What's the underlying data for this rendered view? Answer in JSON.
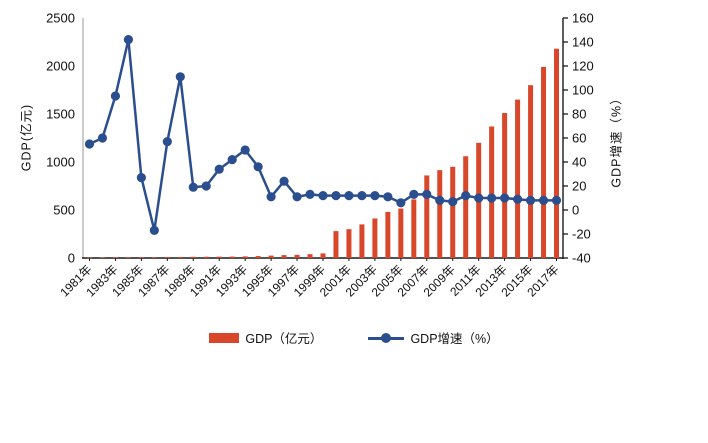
{
  "chart_data": {
    "type": "bar+line combo",
    "title": "",
    "years": [
      1981,
      1982,
      1983,
      1984,
      1985,
      1986,
      1987,
      1988,
      1989,
      1990,
      1991,
      1992,
      1993,
      1994,
      1995,
      1996,
      1997,
      1998,
      1999,
      2000,
      2001,
      2002,
      2003,
      2004,
      2005,
      2006,
      2007,
      2008,
      2009,
      2010,
      2011,
      2012,
      2013,
      2014,
      2015,
      2016,
      2017
    ],
    "x_tick_labels": [
      "1981年",
      "1983年",
      "1985年",
      "1987年",
      "1989年",
      "1991年",
      "1993年",
      "1995年",
      "1997年",
      "1999年",
      "2001年",
      "2003年",
      "2005年",
      "2007年",
      "2009年",
      "2011年",
      "2013年",
      "2015年",
      "2017年"
    ],
    "series": [
      {
        "name": "GDP（亿元）",
        "type": "bar",
        "axis": "left",
        "color": "#D9472B",
        "values": [
          4,
          5,
          6,
          7,
          8,
          9,
          10,
          11,
          12,
          13,
          14,
          15,
          17,
          20,
          25,
          30,
          33,
          40,
          48,
          280,
          300,
          350,
          412,
          480,
          515,
          610,
          860,
          915,
          950,
          1060,
          1200,
          1370,
          1510,
          1650,
          1800,
          1990,
          2180
        ]
      },
      {
        "name": "GDP增速（%）",
        "type": "line",
        "axis": "right",
        "color": "#2B4E8E",
        "values": [
          55,
          60,
          95,
          142,
          27,
          -17,
          57,
          111,
          19,
          20,
          34,
          42,
          50,
          36,
          11,
          24,
          11,
          13,
          12,
          12,
          12,
          12,
          12,
          11,
          6,
          13,
          13,
          8,
          7,
          12,
          10,
          10,
          10,
          9,
          8,
          8,
          8
        ]
      }
    ],
    "left_axis": {
      "label": "GDP(亿元)",
      "min": 0,
      "max": 2500,
      "step": 500
    },
    "right_axis": {
      "label": "GDP增速（%）",
      "min": -40,
      "max": 160,
      "step": 20
    },
    "grid": "off",
    "legend_position": "bottom"
  },
  "colors": {
    "bar": "#D9472B",
    "line": "#2B4E8E",
    "axis_dark": "#1a1a1a",
    "axis_light": "#9a9a9a",
    "text": "#111111"
  }
}
